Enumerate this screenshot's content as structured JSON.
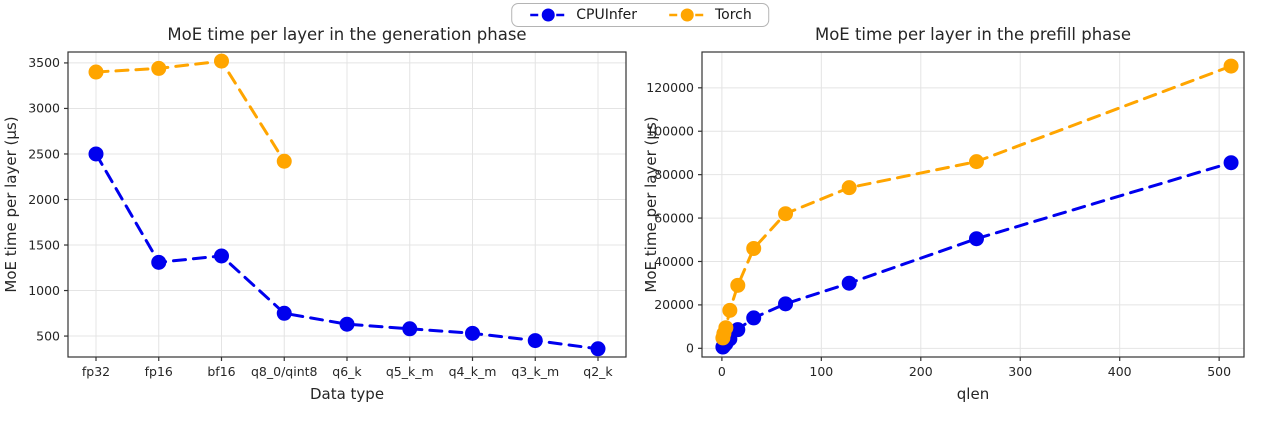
{
  "legend": {
    "position": "top-center",
    "items": [
      {
        "label": "CPUInfer",
        "color": "#0000ee",
        "marker": "circle-icon"
      },
      {
        "label": "Torch",
        "color": "#ffa500",
        "marker": "circle-icon"
      }
    ]
  },
  "chart_data": [
    {
      "type": "line",
      "title": "MoE time per layer in the generation phase",
      "xlabel": "Data type",
      "ylabel": "MoE time per layer (µs)",
      "x_mode": "categorical",
      "categories": [
        "fp32",
        "fp16",
        "bf16",
        "q8_0/qint8",
        "q6_k",
        "q5_k_m",
        "q4_k_m",
        "q3_k_m",
        "q2_k"
      ],
      "yticks": [
        500,
        1000,
        1500,
        2000,
        2500,
        3000,
        3500
      ],
      "ylim": [
        270,
        3620
      ],
      "grid": true,
      "line_style": "dashed",
      "series": [
        {
          "name": "CPUInfer",
          "color": "#0000ee",
          "values": [
            2500,
            1310,
            1380,
            750,
            630,
            580,
            530,
            450,
            360
          ]
        },
        {
          "name": "Torch",
          "color": "#ffa500",
          "values": [
            3400,
            3440,
            3520,
            2420,
            null,
            null,
            null,
            null,
            null
          ]
        }
      ]
    },
    {
      "type": "line",
      "title": "MoE time per layer in the prefill phase",
      "xlabel": "qlen",
      "ylabel": "MoE time per layer (µs)",
      "x_mode": "numeric",
      "x": [
        1,
        2,
        4,
        8,
        16,
        32,
        64,
        128,
        256,
        512
      ],
      "xticks": [
        0,
        100,
        200,
        300,
        400,
        500
      ],
      "xlim": [
        -20,
        525
      ],
      "yticks": [
        0,
        20000,
        40000,
        60000,
        80000,
        100000,
        120000
      ],
      "ylim": [
        -4000,
        136500
      ],
      "grid": true,
      "line_style": "dashed",
      "series": [
        {
          "name": "CPUInfer",
          "color": "#0000ee",
          "values": [
            600,
            1100,
            2100,
            4300,
            8600,
            14000,
            20500,
            30000,
            50500,
            85500
          ]
        },
        {
          "name": "Torch",
          "color": "#ffa500",
          "values": [
            4800,
            6800,
            9500,
            17500,
            29000,
            46000,
            62000,
            74000,
            86000,
            130000
          ]
        }
      ]
    }
  ]
}
